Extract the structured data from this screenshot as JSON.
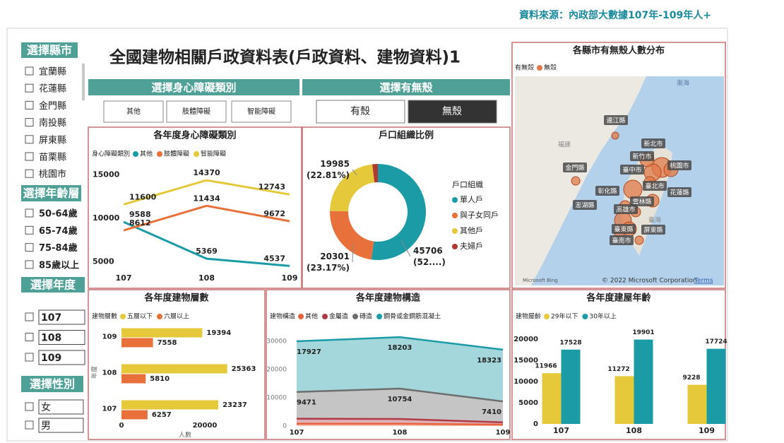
{
  "header": {
    "source": "資料來源：內政部大數據107年-109年人+",
    "title": "全國建物相關戶政資料表(戶政資料、建物資料)1"
  },
  "slicers": {
    "county": {
      "title": "選擇縣市",
      "items": [
        "宜蘭縣",
        "花蓮縣",
        "金門縣",
        "南投縣",
        "屏東縣",
        "苗栗縣",
        "桃園市"
      ]
    },
    "age": {
      "title": "選擇年齡層",
      "items": [
        "50-64歲",
        "65-74歲",
        "75-84歲",
        "85歲以上"
      ]
    },
    "year": {
      "title": "選擇年度",
      "items": [
        "107",
        "108",
        "109"
      ]
    },
    "gender": {
      "title": "選擇性別",
      "items": [
        "女",
        "男"
      ]
    },
    "disability": {
      "title": "選擇身心障礙類別",
      "items": [
        "其他",
        "肢體障礙",
        "智能障礙"
      ]
    },
    "housing": {
      "title": "選擇有無殼",
      "items": [
        "有殼",
        "無殼"
      ],
      "selected_index": 1
    }
  },
  "map": {
    "title": "各縣市有無殼人數分布",
    "legend_title": "有無殼",
    "legend_item": "無殼",
    "legend_color": "#e07a4a",
    "regions": [
      "東海",
      "福建",
      "臺灣"
    ],
    "places": [
      "連江縣",
      "新北市",
      "新竹市",
      "金門縣",
      "臺中市",
      "桃園市",
      "臺北市",
      "彰化縣",
      "花蓮縣",
      "雲林縣",
      "澎湖縣",
      "高雄市",
      "臺東縣",
      "屏東縣",
      "臺南市"
    ],
    "attribution": {
      "logo": "Microsoft Bing",
      "copyright": "© 2022 Microsoft Corporation",
      "terms": "Terms"
    }
  },
  "chart_data": [
    {
      "type": "line",
      "title": "各年度身心障礙類別",
      "legend_title": "身心障礙類別",
      "categories": [
        "107",
        "108",
        "109"
      ],
      "series": [
        {
          "name": "其他",
          "color": "#1a9ba6",
          "values": [
            9588,
            5369,
            4537
          ]
        },
        {
          "name": "肢體障礙",
          "color": "#e8703a",
          "values": [
            8612,
            11434,
            9672
          ]
        },
        {
          "name": "智能障礙",
          "color": "#e5c93b",
          "values": [
            11600,
            14370,
            12743
          ]
        }
      ],
      "ylim": [
        4000,
        16000
      ],
      "yticks": [
        5000,
        10000,
        15000
      ]
    },
    {
      "type": "donut",
      "title": "戶口組織比例",
      "legend_title": "戶口組織",
      "categories": [
        "單人戶",
        "與子女同戶",
        "其他戶",
        "夫婦戶"
      ],
      "values": [
        45706,
        20301,
        19985,
        1626
      ],
      "value_labels": [
        "45706 (52....)",
        "20301 (23.17%)",
        "19985 (22.81%)",
        null
      ],
      "colors": [
        "#1a9ba6",
        "#e8703a",
        "#e5c93b",
        "#b03a32"
      ]
    },
    {
      "type": "bar",
      "horizontal": true,
      "title": "各年度建物層數",
      "legend_title": "建物層數",
      "categories": [
        "109",
        "108",
        "107"
      ],
      "series": [
        {
          "name": "五層以下",
          "color": "#e5c93b",
          "values": [
            19394,
            25363,
            23237
          ]
        },
        {
          "name": "六層以上",
          "color": "#e8703a",
          "values": [
            7558,
            5810,
            6257
          ]
        }
      ],
      "xlim": [
        0,
        30000
      ],
      "xticks": [
        0,
        20000
      ],
      "xlabel": "人數",
      "ylabel": "年度"
    },
    {
      "type": "area",
      "stacked": true,
      "title": "各年度建物構造",
      "legend_title": "建物構造",
      "categories": [
        "107",
        "108",
        "109"
      ],
      "series": [
        {
          "name": "其他",
          "color": "#e8623a",
          "values": [
            800,
            800,
            500
          ],
          "labels": false
        },
        {
          "name": "金屬造",
          "color": "#b03a48",
          "values": [
            1800,
            1700,
            800
          ],
          "labels": false
        },
        {
          "name": "磚造",
          "color": "#6e6e6e",
          "values": [
            9471,
            10754,
            7410
          ],
          "labels": true
        },
        {
          "name": "鋼骨或金鋼筋混凝土",
          "color": "#1a9ba6",
          "values": [
            17927,
            18203,
            18323
          ],
          "labels": true
        }
      ],
      "ylim": [
        0,
        32000
      ],
      "yticks": [
        0,
        10000,
        20000,
        30000
      ]
    },
    {
      "type": "bar",
      "horizontal": false,
      "title": "各年度建屋年齡",
      "legend_title": "建物屋齡",
      "categories": [
        "107",
        "108",
        "109"
      ],
      "series": [
        {
          "name": "29年以下",
          "color": "#e5c93b",
          "values": [
            11966,
            11272,
            9228
          ]
        },
        {
          "name": "30年以上",
          "color": "#1a9ba6",
          "values": [
            17528,
            19901,
            17724
          ]
        }
      ],
      "ylim": [
        0,
        21000
      ],
      "yticks": [
        0,
        5000,
        10000,
        15000,
        20000
      ]
    }
  ]
}
